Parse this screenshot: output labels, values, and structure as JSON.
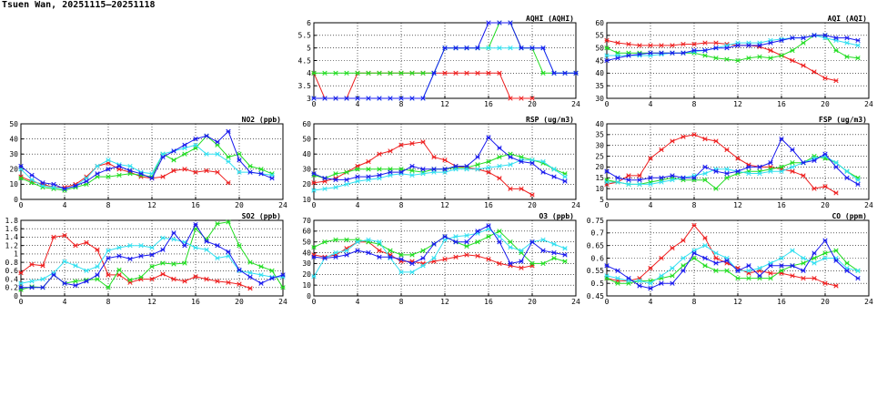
{
  "page_title": "Tsuen Wan, 20251115—20251118",
  "colors": {
    "red": "#ee2020",
    "green": "#22dd22",
    "cyan": "#33e0f0",
    "blue": "#1a1aee"
  },
  "chart_data": [
    {
      "id": "no2",
      "type": "line",
      "title": "NO2 (ppb)",
      "xlim": [
        0,
        24
      ],
      "xticks": [
        0,
        4,
        8,
        12,
        16,
        20,
        24
      ],
      "ylim": [
        0,
        50
      ],
      "yticks": [
        0,
        10,
        20,
        30,
        40,
        50
      ],
      "grid": true,
      "series": [
        {
          "color": "red",
          "values": [
            15,
            12,
            10,
            8,
            8,
            10,
            15,
            22,
            24,
            20,
            18,
            15,
            14,
            15,
            19,
            20,
            18,
            19,
            18,
            11
          ]
        },
        {
          "color": "green",
          "values": [
            14,
            11,
            8,
            7,
            6,
            8,
            10,
            15,
            15,
            16,
            17,
            16,
            15,
            30,
            26,
            30,
            34,
            42,
            36,
            28,
            30,
            22,
            20,
            17
          ]
        },
        {
          "color": "cyan",
          "values": [
            20,
            13,
            9,
            8,
            7,
            9,
            14,
            22,
            26,
            23,
            22,
            18,
            17,
            30,
            32,
            34,
            36,
            30,
            30,
            25,
            18,
            18,
            17,
            16
          ]
        },
        {
          "color": "blue",
          "values": [
            22,
            16,
            11,
            10,
            7,
            9,
            12,
            17,
            20,
            22,
            19,
            17,
            14,
            28,
            32,
            36,
            40,
            42,
            38,
            45,
            26,
            18,
            17,
            14
          ]
        }
      ]
    },
    {
      "id": "so2",
      "type": "line",
      "title": "SO2 (ppb)",
      "xlim": [
        0,
        24
      ],
      "xticks": [
        0,
        4,
        8,
        12,
        16,
        20,
        24
      ],
      "ylim": [
        0,
        1.8
      ],
      "yticks": [
        0,
        0.2,
        0.4,
        0.6,
        0.8,
        1,
        1.2,
        1.4,
        1.6,
        1.8
      ],
      "grid": true,
      "series": [
        {
          "color": "red",
          "values": [
            0.55,
            0.75,
            0.72,
            1.4,
            1.44,
            1.2,
            1.27,
            1.1,
            0.5,
            0.5,
            0.32,
            0.4,
            0.4,
            0.52,
            0.4,
            0.35,
            0.46,
            0.4,
            0.35,
            0.32,
            0.28,
            0.18
          ]
        },
        {
          "color": "green",
          "values": [
            0.15,
            0.22,
            0.2,
            0.5,
            0.3,
            0.35,
            0.38,
            0.4,
            0.2,
            0.62,
            0.38,
            0.45,
            0.7,
            0.78,
            0.76,
            0.78,
            1.6,
            1.35,
            1.72,
            1.76,
            1.2,
            0.8,
            0.7,
            0.6,
            0.2
          ]
        },
        {
          "color": "cyan",
          "values": [
            0.3,
            0.35,
            0.4,
            0.55,
            0.82,
            0.72,
            0.6,
            0.7,
            1.08,
            1.15,
            1.2,
            1.2,
            1.15,
            1.38,
            1.35,
            1.28,
            1.15,
            1.1,
            0.9,
            0.95,
            0.6,
            0.55,
            0.5,
            0.45,
            0.45
          ]
        },
        {
          "color": "blue",
          "values": [
            0.2,
            0.2,
            0.2,
            0.5,
            0.3,
            0.25,
            0.35,
            0.5,
            0.9,
            0.95,
            0.88,
            0.95,
            0.98,
            1.1,
            1.5,
            1.2,
            1.7,
            1.3,
            1.2,
            1.05,
            0.62,
            0.45,
            0.3,
            0.42,
            0.5
          ]
        }
      ]
    },
    {
      "id": "aqhi",
      "type": "line",
      "title": "AQHI (AQHI)",
      "xlim": [
        0,
        24
      ],
      "xticks": [
        0,
        4,
        8,
        12,
        16,
        20,
        24
      ],
      "ylim": [
        3,
        6
      ],
      "yticks": [
        3,
        3.5,
        4,
        4.5,
        5,
        5.5,
        6
      ],
      "grid": true,
      "series": [
        {
          "color": "red",
          "values": [
            4,
            3,
            3,
            3,
            4,
            4,
            4,
            4,
            4,
            4,
            4,
            4,
            4,
            4,
            4,
            4,
            4,
            4,
            3,
            3,
            3
          ]
        },
        {
          "color": "green",
          "values": [
            4,
            4,
            4,
            4,
            4,
            4,
            4,
            4,
            4,
            4,
            4,
            4,
            5,
            5,
            5,
            5,
            5,
            6,
            6,
            5,
            5,
            4,
            4,
            4,
            4
          ]
        },
        {
          "color": "cyan",
          "values": [
            3,
            3,
            3,
            3,
            3,
            3,
            3,
            3,
            3,
            3,
            3,
            4,
            5,
            5,
            5,
            5,
            5,
            5,
            5,
            5,
            5,
            5,
            4,
            4,
            4
          ]
        },
        {
          "color": "blue",
          "values": [
            3,
            3,
            3,
            3,
            3,
            3,
            3,
            3,
            3,
            3,
            3,
            4,
            5,
            5,
            5,
            5,
            6,
            6,
            6,
            5,
            5,
            5,
            4,
            4,
            4
          ]
        }
      ]
    },
    {
      "id": "rsp",
      "type": "line",
      "title": "RSP (ug/m3)",
      "xlim": [
        0,
        24
      ],
      "xticks": [
        0,
        4,
        8,
        12,
        16,
        20,
        24
      ],
      "ylim": [
        10,
        60
      ],
      "yticks": [
        10,
        20,
        30,
        40,
        50,
        60
      ],
      "grid": true,
      "series": [
        {
          "color": "red",
          "values": [
            21,
            22,
            24,
            28,
            32,
            35,
            40,
            42,
            46,
            47,
            48,
            38,
            36,
            32,
            31,
            30,
            28,
            24,
            17,
            17,
            13
          ]
        },
        {
          "color": "green",
          "values": [
            26,
            24,
            27,
            28,
            30,
            30,
            30,
            30,
            30,
            29,
            28,
            30,
            30,
            31,
            31,
            33,
            35,
            38,
            40,
            38,
            36,
            34,
            30,
            27
          ]
        },
        {
          "color": "cyan",
          "values": [
            16,
            17,
            18,
            20,
            22,
            23,
            24,
            26,
            27,
            26,
            27,
            28,
            28,
            30,
            30,
            30,
            31,
            32,
            33,
            36,
            36,
            35,
            30,
            25
          ]
        },
        {
          "color": "blue",
          "values": [
            27,
            24,
            23,
            23,
            25,
            25,
            26,
            28,
            28,
            32,
            30,
            30,
            30,
            32,
            32,
            38,
            51,
            44,
            38,
            35,
            34,
            28,
            25,
            22
          ]
        }
      ]
    },
    {
      "id": "o3",
      "type": "line",
      "title": "O3 (ppb)",
      "xlim": [
        0,
        24
      ],
      "xticks": [
        0,
        4,
        8,
        12,
        16,
        20,
        24
      ],
      "ylim": [
        0,
        70
      ],
      "yticks": [
        0,
        10,
        20,
        30,
        40,
        50,
        60,
        70
      ],
      "grid": true,
      "series": [
        {
          "color": "red",
          "values": [
            38,
            36,
            38,
            44,
            50,
            50,
            42,
            38,
            32,
            32,
            30,
            32,
            34,
            36,
            38,
            37,
            34,
            30,
            28,
            26,
            28
          ]
        },
        {
          "color": "green",
          "values": [
            45,
            50,
            52,
            52,
            52,
            50,
            48,
            42,
            38,
            38,
            42,
            48,
            55,
            50,
            46,
            50,
            55,
            60,
            50,
            40,
            30,
            30,
            35,
            32
          ]
        },
        {
          "color": "cyan",
          "values": [
            18,
            35,
            40,
            42,
            50,
            52,
            50,
            35,
            22,
            22,
            28,
            35,
            52,
            55,
            56,
            58,
            62,
            55,
            45,
            42,
            50,
            52,
            48,
            44
          ]
        },
        {
          "color": "blue",
          "values": [
            36,
            35,
            36,
            38,
            42,
            40,
            36,
            36,
            34,
            30,
            35,
            48,
            55,
            50,
            50,
            60,
            65,
            50,
            30,
            32,
            50,
            42,
            40,
            38
          ]
        }
      ]
    },
    {
      "id": "aqi",
      "type": "line",
      "title": "AQI (AQI)",
      "xlim": [
        0,
        24
      ],
      "xticks": [
        0,
        4,
        8,
        12,
        16,
        20,
        24
      ],
      "ylim": [
        30,
        60
      ],
      "yticks": [
        30,
        35,
        40,
        45,
        50,
        55,
        60
      ],
      "grid": true,
      "series": [
        {
          "color": "red",
          "values": [
            53,
            52,
            51.5,
            51,
            51,
            51,
            51,
            51.5,
            51.5,
            52,
            52,
            51.5,
            51,
            51,
            50.5,
            49,
            47,
            45,
            43,
            40.5,
            38,
            37
          ]
        },
        {
          "color": "green",
          "values": [
            50,
            48,
            48,
            48,
            48,
            48,
            48,
            48,
            48,
            47,
            46,
            45.5,
            45,
            46,
            46.5,
            46,
            47,
            49,
            52,
            55,
            55,
            49,
            46.5,
            46
          ]
        },
        {
          "color": "cyan",
          "values": [
            47,
            47,
            47,
            47,
            47,
            47.5,
            48,
            48,
            48.5,
            49,
            50,
            51,
            52,
            52,
            52,
            53,
            53.5,
            54,
            54,
            55,
            54,
            53,
            52,
            51
          ]
        },
        {
          "color": "blue",
          "values": [
            45,
            46,
            47,
            47.5,
            48,
            48,
            48,
            48,
            49,
            49,
            50,
            50,
            51,
            51,
            51,
            52,
            53,
            54,
            54,
            55,
            55,
            54,
            54,
            53
          ]
        }
      ]
    },
    {
      "id": "fsp",
      "type": "line",
      "title": "FSP (ug/m3)",
      "xlim": [
        0,
        24
      ],
      "xticks": [
        0,
        4,
        8,
        12,
        16,
        20,
        24
      ],
      "ylim": [
        5,
        40
      ],
      "yticks": [
        5,
        10,
        15,
        20,
        25,
        30,
        35,
        40
      ],
      "grid": true,
      "series": [
        {
          "color": "red",
          "values": [
            12,
            13,
            16,
            16,
            24,
            28,
            32,
            34,
            35,
            33,
            32,
            28,
            24,
            21,
            20,
            20,
            19,
            18,
            16,
            10,
            11,
            8
          ]
        },
        {
          "color": "green",
          "values": [
            14,
            13,
            12,
            12,
            13,
            14,
            15,
            14,
            14,
            14,
            10,
            15,
            17,
            18,
            18,
            19,
            20,
            22,
            22,
            25,
            24,
            22,
            18,
            15
          ]
        },
        {
          "color": "cyan",
          "values": [
            13,
            13,
            12,
            12,
            12,
            13,
            14,
            15,
            16,
            17,
            19,
            19,
            18,
            17,
            17,
            18,
            18,
            20,
            22,
            24,
            25,
            22,
            18,
            14
          ]
        },
        {
          "color": "blue",
          "values": [
            18,
            15,
            14,
            14,
            15,
            15,
            16,
            15,
            15,
            20,
            18,
            17,
            18,
            20,
            20,
            22,
            33,
            28,
            22,
            23,
            26,
            20,
            15,
            12
          ]
        }
      ]
    },
    {
      "id": "co",
      "type": "line",
      "title": "CO (ppm)",
      "xlim": [
        0,
        24
      ],
      "xticks": [
        0,
        4,
        8,
        12,
        16,
        20,
        24
      ],
      "ylim": [
        0.45,
        0.75
      ],
      "yticks": [
        0.45,
        0.5,
        0.55,
        0.6,
        0.65,
        0.7,
        0.75
      ],
      "grid": true,
      "series": [
        {
          "color": "red",
          "values": [
            0.52,
            0.51,
            0.51,
            0.52,
            0.56,
            0.6,
            0.64,
            0.67,
            0.73,
            0.68,
            0.6,
            0.58,
            0.56,
            0.54,
            0.55,
            0.54,
            0.54,
            0.53,
            0.52,
            0.52,
            0.5,
            0.49
          ]
        },
        {
          "color": "green",
          "values": [
            0.52,
            0.5,
            0.5,
            0.51,
            0.51,
            0.52,
            0.53,
            0.57,
            0.6,
            0.57,
            0.55,
            0.55,
            0.52,
            0.52,
            0.52,
            0.52,
            0.55,
            0.57,
            0.58,
            0.6,
            0.62,
            0.63,
            0.58,
            0.55
          ]
        },
        {
          "color": "cyan",
          "values": [
            0.53,
            0.52,
            0.51,
            0.51,
            0.5,
            0.53,
            0.56,
            0.6,
            0.63,
            0.65,
            0.62,
            0.6,
            0.55,
            0.55,
            0.56,
            0.58,
            0.6,
            0.63,
            0.6,
            0.58,
            0.6,
            0.6,
            0.56,
            0.55
          ]
        },
        {
          "color": "blue",
          "values": [
            0.57,
            0.55,
            0.52,
            0.49,
            0.48,
            0.5,
            0.5,
            0.55,
            0.62,
            0.6,
            0.58,
            0.59,
            0.55,
            0.57,
            0.53,
            0.57,
            0.57,
            0.57,
            0.55,
            0.62,
            0.67,
            0.59,
            0.55,
            0.52
          ]
        }
      ]
    }
  ]
}
